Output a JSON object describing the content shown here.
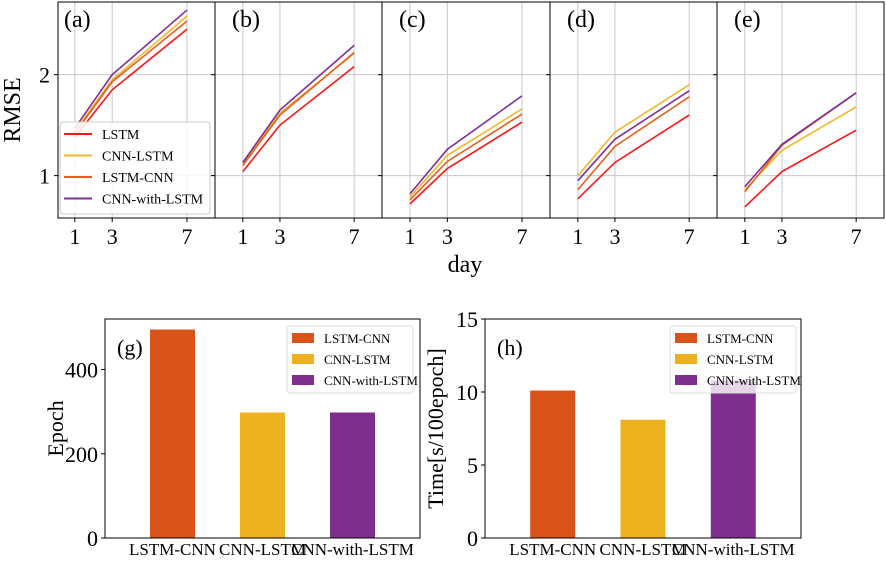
{
  "chart_data": [
    {
      "type": "line",
      "ylabel": "RMSE",
      "xlabel": "day",
      "x": [
        1,
        3,
        7
      ],
      "xticks": [
        "1",
        "3",
        "7"
      ],
      "yticks": [
        "1",
        "2"
      ],
      "ylim": [
        0.58,
        2.72
      ],
      "grid": true,
      "legend": {
        "placement": "lower-left",
        "panel": "(a)"
      },
      "colors": {
        "LSTM": "#ff1414",
        "CNN-LSTM": "#f0b92e",
        "LSTM-CNN": "#e2601e",
        "CNN-with-LSTM": "#7d2f97"
      },
      "series_names": [
        "LSTM",
        "CNN-LSTM",
        "LSTM-CNN",
        "CNN-with-LSTM"
      ],
      "panels": [
        {
          "label": "(a)",
          "xlim": [
            0.1,
            8.5
          ],
          "series": [
            {
              "name": "LSTM",
              "values": [
                1.38,
                1.85,
                2.45
              ]
            },
            {
              "name": "CNN-LSTM",
              "values": [
                1.44,
                1.95,
                2.58
              ]
            },
            {
              "name": "LSTM-CNN",
              "values": [
                1.42,
                1.93,
                2.53
              ]
            },
            {
              "name": "CNN-with-LSTM",
              "values": [
                1.47,
                2.0,
                2.64
              ]
            }
          ]
        },
        {
          "label": "(b)",
          "xlim": [
            -0.5,
            8.5
          ],
          "series": [
            {
              "name": "LSTM",
              "values": [
                1.04,
                1.5,
                2.08
              ]
            },
            {
              "name": "CNN-LSTM",
              "values": [
                1.12,
                1.62,
                2.21
              ]
            },
            {
              "name": "LSTM-CNN",
              "values": [
                1.1,
                1.6,
                2.22
              ]
            },
            {
              "name": "CNN-with-LSTM",
              "values": [
                1.13,
                1.65,
                2.29
              ]
            }
          ]
        },
        {
          "label": "(c)",
          "xlim": [
            -0.5,
            8.5
          ],
          "series": [
            {
              "name": "LSTM",
              "values": [
                0.72,
                1.07,
                1.53
              ]
            },
            {
              "name": "CNN-LSTM",
              "values": [
                0.79,
                1.2,
                1.66
              ]
            },
            {
              "name": "LSTM-CNN",
              "values": [
                0.76,
                1.14,
                1.61
              ]
            },
            {
              "name": "CNN-with-LSTM",
              "values": [
                0.82,
                1.26,
                1.79
              ]
            }
          ]
        },
        {
          "label": "(d)",
          "xlim": [
            -0.5,
            8.5
          ],
          "series": [
            {
              "name": "LSTM",
              "values": [
                0.77,
                1.13,
                1.6
              ]
            },
            {
              "name": "CNN-LSTM",
              "values": [
                1.0,
                1.43,
                1.9
              ]
            },
            {
              "name": "LSTM-CNN",
              "values": [
                0.86,
                1.29,
                1.78
              ]
            },
            {
              "name": "CNN-with-LSTM",
              "values": [
                0.95,
                1.36,
                1.84
              ]
            }
          ]
        },
        {
          "label": "(e)",
          "xlim": [
            -0.5,
            8.5
          ],
          "series": [
            {
              "name": "LSTM",
              "values": [
                0.69,
                1.04,
                1.45
              ]
            },
            {
              "name": "CNN-LSTM",
              "values": [
                0.86,
                1.25,
                1.68
              ]
            },
            {
              "name": "LSTM-CNN",
              "values": [
                0.84,
                1.3,
                1.82
              ]
            },
            {
              "name": "CNN-with-LSTM",
              "values": [
                0.89,
                1.31,
                1.82
              ]
            }
          ]
        }
      ]
    },
    {
      "type": "bar",
      "panel_label": "(g)",
      "ylabel": "Epoch",
      "categories": [
        "LSTM-CNN",
        "CNN-LSTM",
        "CNN-with-LSTM"
      ],
      "values": [
        495,
        298,
        298
      ],
      "colors": [
        "#d95319",
        "#edb120",
        "#7e2f8e"
      ],
      "yticks": [
        "0",
        "200",
        "400"
      ],
      "ytick_values": [
        0,
        200,
        400
      ],
      "ylim": [
        0,
        520
      ],
      "grid": false,
      "legend": {
        "placement": "top-right",
        "entries": [
          "LSTM-CNN",
          "CNN-LSTM",
          "CNN-with-LSTM"
        ]
      }
    },
    {
      "type": "bar",
      "panel_label": "(h)",
      "ylabel": "Time[s/100epoch]",
      "categories": [
        "LSTM-CNN",
        "CNN-LSTM",
        "CNN-with-LSTM"
      ],
      "values": [
        10.1,
        8.1,
        10.8
      ],
      "colors": [
        "#d95319",
        "#edb120",
        "#7e2f8e"
      ],
      "yticks": [
        "0",
        "5",
        "10",
        "15"
      ],
      "ytick_values": [
        0,
        5,
        10,
        15
      ],
      "ylim": [
        0,
        15
      ],
      "grid": false,
      "legend": {
        "placement": "top-right",
        "entries": [
          "LSTM-CNN",
          "CNN-LSTM",
          "CNN-with-LSTM"
        ]
      }
    }
  ]
}
